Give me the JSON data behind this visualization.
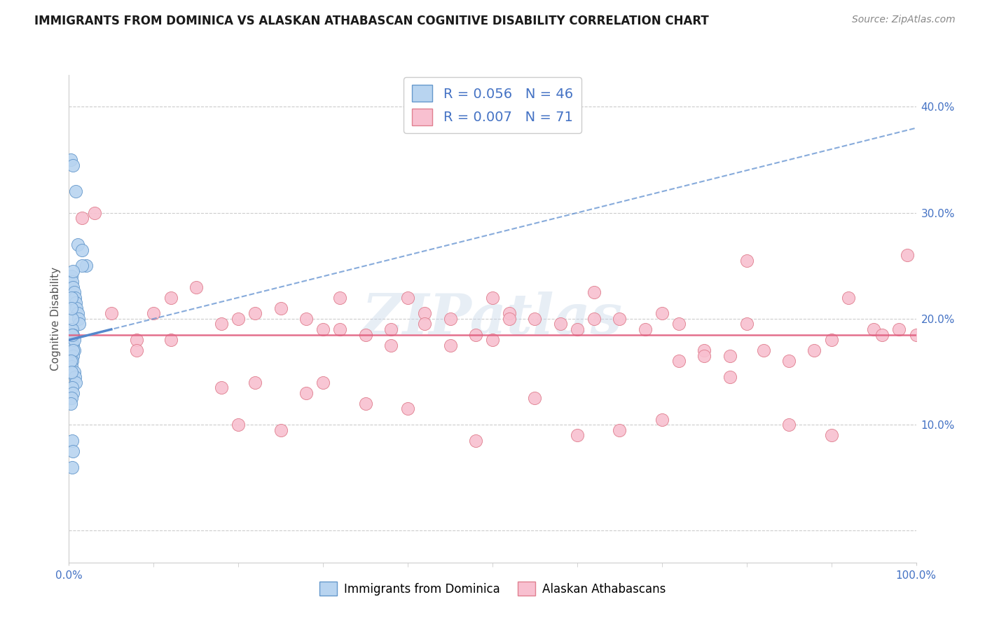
{
  "title": "IMMIGRANTS FROM DOMINICA VS ALASKAN ATHABASCAN COGNITIVE DISABILITY CORRELATION CHART",
  "source": "Source: ZipAtlas.com",
  "ylabel": "Cognitive Disability",
  "legend_blue_r": "R = 0.056",
  "legend_blue_n": "N = 46",
  "legend_pink_r": "R = 0.007",
  "legend_pink_n": "N = 71",
  "watermark": "ZIPatlas",
  "blue_fill": "#b8d4f0",
  "blue_edge": "#6699cc",
  "blue_line": "#5588cc",
  "pink_fill": "#f8c0d0",
  "pink_edge": "#e08090",
  "pink_line": "#e06080",
  "text_blue": "#4472c4",
  "grid_color": "#cccccc",
  "bg_color": "#ffffff",
  "blue_x": [
    0.2,
    0.5,
    0.8,
    1.0,
    1.5,
    2.0,
    0.3,
    0.4,
    0.5,
    0.6,
    0.7,
    0.8,
    0.9,
    1.0,
    1.1,
    1.2,
    0.2,
    0.3,
    0.4,
    0.5,
    0.6,
    0.5,
    0.4,
    0.3,
    0.6,
    0.7,
    0.8,
    0.4,
    0.5,
    0.3,
    0.2,
    0.4,
    0.5,
    0.6,
    0.3,
    0.4,
    0.5,
    0.2,
    0.3,
    0.4,
    0.5,
    0.4,
    0.3,
    1.5,
    0.5,
    0.4
  ],
  "blue_y": [
    35.0,
    34.5,
    32.0,
    27.0,
    26.5,
    25.0,
    24.0,
    23.5,
    23.0,
    22.5,
    22.0,
    21.5,
    21.0,
    20.5,
    20.0,
    19.5,
    19.0,
    18.5,
    18.0,
    17.5,
    17.0,
    16.5,
    16.0,
    15.5,
    15.0,
    14.5,
    14.0,
    13.5,
    13.0,
    12.5,
    12.0,
    19.0,
    18.5,
    18.0,
    22.0,
    20.0,
    17.0,
    16.0,
    15.0,
    8.5,
    7.5,
    6.0,
    21.0,
    25.0,
    24.5,
    18.5
  ],
  "pink_x": [
    1.5,
    3.0,
    5.0,
    8.0,
    10.0,
    12.0,
    15.0,
    18.0,
    20.0,
    22.0,
    25.0,
    28.0,
    30.0,
    32.0,
    35.0,
    38.0,
    40.0,
    42.0,
    45.0,
    48.0,
    50.0,
    52.0,
    55.0,
    58.0,
    60.0,
    62.0,
    65.0,
    68.0,
    70.0,
    72.0,
    75.0,
    78.0,
    80.0,
    82.0,
    85.0,
    88.0,
    90.0,
    92.0,
    95.0,
    96.0,
    98.0,
    99.0,
    100.0,
    72.0,
    78.0,
    55.0,
    60.0,
    30.0,
    35.0,
    40.0,
    45.0,
    50.0,
    20.0,
    25.0,
    85.0,
    65.0,
    70.0,
    8.0,
    12.0,
    18.0,
    22.0,
    28.0,
    32.0,
    38.0,
    42.0,
    48.0,
    52.0,
    75.0,
    80.0,
    90.0,
    62.0
  ],
  "pink_y": [
    29.5,
    30.0,
    20.5,
    18.0,
    20.5,
    22.0,
    23.0,
    19.5,
    20.0,
    20.5,
    21.0,
    20.0,
    19.0,
    22.0,
    18.5,
    19.0,
    22.0,
    20.5,
    20.0,
    8.5,
    22.0,
    20.5,
    20.0,
    19.5,
    19.0,
    22.5,
    20.0,
    19.0,
    20.5,
    19.5,
    17.0,
    16.5,
    25.5,
    17.0,
    16.0,
    17.0,
    18.0,
    22.0,
    19.0,
    18.5,
    19.0,
    26.0,
    18.5,
    16.0,
    14.5,
    12.5,
    9.0,
    14.0,
    12.0,
    11.5,
    17.5,
    18.0,
    10.0,
    9.5,
    10.0,
    9.5,
    10.5,
    17.0,
    18.0,
    13.5,
    14.0,
    13.0,
    19.0,
    17.5,
    19.5,
    18.5,
    20.0,
    16.5,
    19.5,
    9.0,
    20.0
  ],
  "xlim": [
    0.0,
    100.0
  ],
  "ylim": [
    -3.0,
    43.0
  ],
  "yticks": [
    0,
    10,
    20,
    30,
    40
  ],
  "ytick_labels": [
    "",
    "10.0%",
    "20.0%",
    "30.0%",
    "40.0%"
  ],
  "title_fontsize": 12,
  "source_fontsize": 10,
  "legend_fontsize": 14,
  "axis_tick_fontsize": 11
}
